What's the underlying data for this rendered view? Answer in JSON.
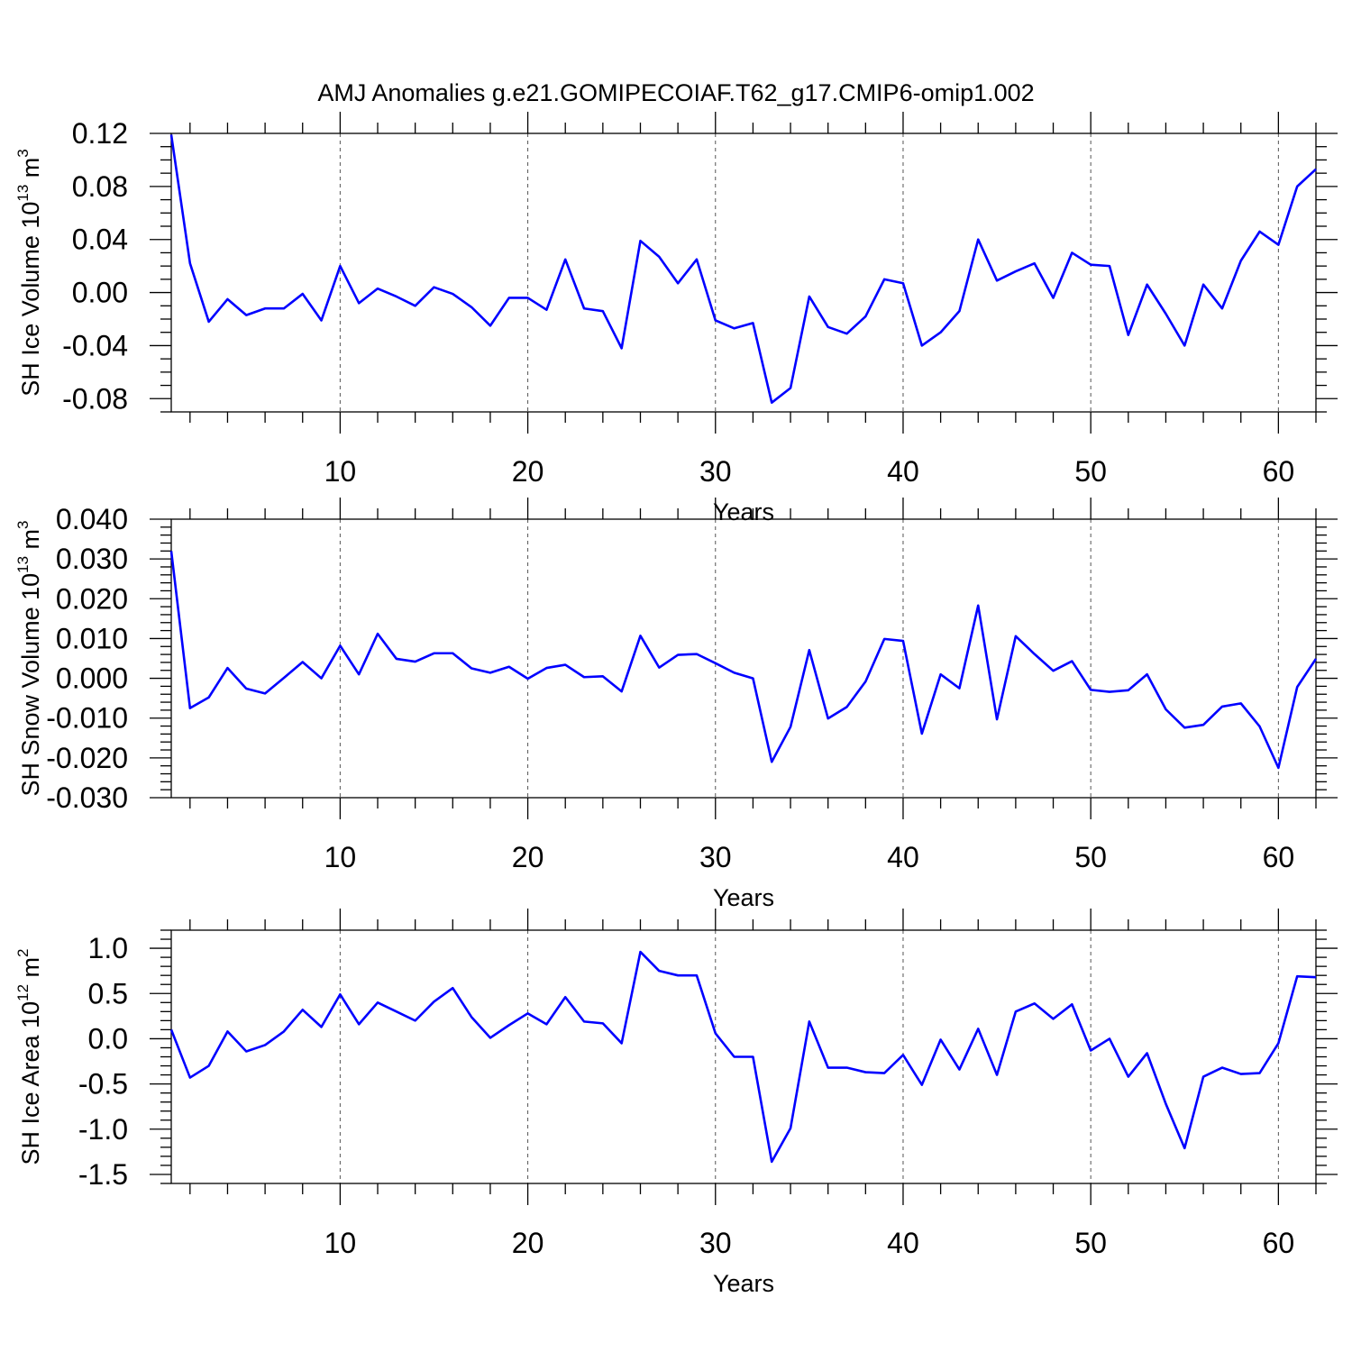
{
  "title": "AMJ Anomalies g.e21.GOMIPECOIAF.T62_g17.CMIP6-omip1.002",
  "chart_data": [
    {
      "type": "line",
      "title": "AMJ Anomalies g.e21.GOMIPECOIAF.T62_g17.CMIP6-omip1.002",
      "xlabel": "Years",
      "ylabel": "SH Ice Volume 10",
      "ylabel_exp": "13",
      "ylabel_unit": "m",
      "ylabel_unit_exp": "3",
      "xlim": [
        1,
        62
      ],
      "ylim": [
        -0.09,
        0.12
      ],
      "xticks": [
        10,
        20,
        30,
        40,
        50,
        60
      ],
      "yticks": [
        -0.08,
        -0.04,
        0.0,
        0.04,
        0.08,
        0.12
      ],
      "ytick_labels": [
        "-0.08",
        "-0.04",
        "0.00",
        "0.04",
        "0.08",
        "0.12"
      ],
      "y_minor_step": 0.01,
      "grid": "x-dashed",
      "series_color": "#0000ff",
      "series": [
        {
          "x": [
            1,
            2,
            3,
            4,
            5,
            6,
            7,
            8,
            9,
            10,
            11,
            12,
            13,
            14,
            15,
            16,
            17,
            18,
            19,
            20,
            21,
            22,
            23,
            24,
            25,
            26,
            27,
            28,
            29,
            30,
            31,
            32,
            33,
            34,
            35,
            36,
            37,
            38,
            39,
            40,
            41,
            42,
            43,
            44,
            45,
            46,
            47,
            48,
            49,
            50,
            51,
            52,
            53,
            54,
            55,
            56,
            57,
            58,
            59,
            60,
            61,
            62
          ],
          "y": [
            0.119,
            0.022,
            -0.022,
            -0.005,
            -0.017,
            -0.012,
            -0.012,
            -0.001,
            -0.021,
            0.02,
            -0.008,
            0.003,
            -0.003,
            -0.01,
            0.004,
            -0.001,
            -0.011,
            -0.025,
            -0.004,
            -0.004,
            -0.013,
            0.025,
            -0.012,
            -0.014,
            -0.042,
            0.039,
            0.027,
            0.007,
            0.025,
            -0.021,
            -0.027,
            -0.023,
            -0.083,
            -0.072,
            -0.003,
            -0.026,
            -0.031,
            -0.018,
            0.01,
            0.007,
            -0.04,
            -0.03,
            -0.014,
            0.04,
            0.009,
            0.016,
            0.022,
            -0.004,
            0.03,
            0.021,
            0.02,
            -0.032,
            0.006,
            -0.016,
            -0.04,
            0.006,
            -0.012,
            0.024,
            0.046,
            0.036,
            0.08,
            0.093
          ]
        }
      ]
    },
    {
      "type": "line",
      "xlabel": "Years",
      "ylabel": "SH Snow Volume 10",
      "ylabel_exp": "13",
      "ylabel_unit": "m",
      "ylabel_unit_exp": "3",
      "xlim": [
        1,
        62
      ],
      "ylim": [
        -0.03,
        0.04
      ],
      "xticks": [
        10,
        20,
        30,
        40,
        50,
        60
      ],
      "yticks": [
        -0.03,
        -0.02,
        -0.01,
        0.0,
        0.01,
        0.02,
        0.03,
        0.04
      ],
      "ytick_labels": [
        "-0.030",
        "-0.020",
        "-0.010",
        "0.000",
        "0.010",
        "0.020",
        "0.030",
        "0.040"
      ],
      "y_minor_step": 0.002,
      "grid": "x-dashed",
      "series_color": "#0000ff",
      "series": [
        {
          "x": [
            1,
            2,
            3,
            4,
            5,
            6,
            7,
            8,
            9,
            10,
            11,
            12,
            13,
            14,
            15,
            16,
            17,
            18,
            19,
            20,
            21,
            22,
            23,
            24,
            25,
            26,
            27,
            28,
            29,
            30,
            31,
            32,
            33,
            34,
            35,
            36,
            37,
            38,
            39,
            40,
            41,
            42,
            43,
            44,
            45,
            46,
            47,
            48,
            49,
            50,
            51,
            52,
            53,
            54,
            55,
            56,
            57,
            58,
            59,
            60,
            61,
            62
          ],
          "y": [
            0.032,
            -0.0075,
            -0.0048,
            0.0026,
            -0.0026,
            -0.0038,
            0.0001,
            0.0041,
            0.0,
            0.0082,
            0.001,
            0.0112,
            0.0049,
            0.0042,
            0.0063,
            0.0063,
            0.0025,
            0.0014,
            0.0029,
            -0.0001,
            0.0026,
            0.0034,
            0.0003,
            0.0005,
            -0.0033,
            0.0107,
            0.0027,
            0.0059,
            0.0061,
            0.0038,
            0.0014,
            0.0,
            -0.021,
            -0.0122,
            0.0071,
            -0.0101,
            -0.0072,
            -0.0008,
            0.0099,
            0.0094,
            -0.0139,
            0.001,
            -0.0025,
            0.0183,
            -0.0103,
            0.0106,
            0.0061,
            0.0019,
            0.0043,
            -0.0029,
            -0.0034,
            -0.003,
            0.001,
            -0.0078,
            -0.0124,
            -0.0117,
            -0.0071,
            -0.0063,
            -0.0121,
            -0.0225,
            -0.0022,
            0.0049
          ]
        }
      ]
    },
    {
      "type": "line",
      "xlabel": "Years",
      "ylabel": "SH Ice Area 10",
      "ylabel_exp": "12",
      "ylabel_unit": "m",
      "ylabel_unit_exp": "2",
      "xlim": [
        1,
        62
      ],
      "ylim": [
        -1.6,
        1.2
      ],
      "xticks": [
        10,
        20,
        30,
        40,
        50,
        60
      ],
      "yticks": [
        -1.5,
        -1.0,
        -0.5,
        0.0,
        0.5,
        1.0
      ],
      "ytick_labels": [
        "-1.5",
        "-1.0",
        "-0.5",
        "0.0",
        "0.5",
        "1.0"
      ],
      "y_minor_step": 0.1,
      "grid": "x-dashed",
      "series_color": "#0000ff",
      "series": [
        {
          "x": [
            1,
            2,
            3,
            4,
            5,
            6,
            7,
            8,
            9,
            10,
            11,
            12,
            13,
            14,
            15,
            16,
            17,
            18,
            19,
            20,
            21,
            22,
            23,
            24,
            25,
            26,
            27,
            28,
            29,
            30,
            31,
            32,
            33,
            34,
            35,
            36,
            37,
            38,
            39,
            40,
            41,
            42,
            43,
            44,
            45,
            46,
            47,
            48,
            49,
            50,
            51,
            52,
            53,
            54,
            55,
            56,
            57,
            58,
            59,
            60,
            61,
            62
          ],
          "y": [
            0.1,
            -0.43,
            -0.3,
            0.08,
            -0.14,
            -0.07,
            0.08,
            0.32,
            0.13,
            0.49,
            0.16,
            0.4,
            0.3,
            0.2,
            0.41,
            0.56,
            0.24,
            0.01,
            0.15,
            0.28,
            0.16,
            0.46,
            0.19,
            0.17,
            -0.05,
            0.96,
            0.75,
            0.7,
            0.7,
            0.06,
            -0.2,
            -0.2,
            -1.36,
            -0.99,
            0.19,
            -0.32,
            -0.32,
            -0.37,
            -0.38,
            -0.18,
            -0.51,
            -0.01,
            -0.34,
            0.11,
            -0.4,
            0.3,
            0.39,
            0.22,
            0.38,
            -0.13,
            0.0,
            -0.42,
            -0.16,
            -0.72,
            -1.21,
            -0.42,
            -0.32,
            -0.39,
            -0.38,
            -0.05,
            0.69,
            0.68
          ]
        }
      ]
    }
  ]
}
